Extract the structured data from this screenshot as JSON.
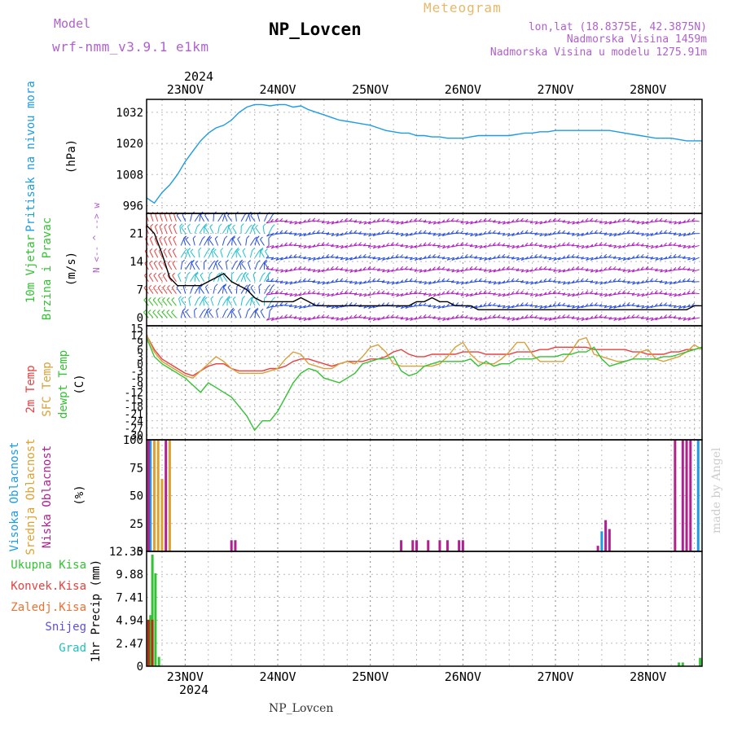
{
  "header": {
    "model_label": "Model",
    "model_name": "wrf-nmm_v3.9.1 e1km",
    "title": "NP_Lovcen",
    "meteogram_label": "Meteogram",
    "coords": "lon,lat (18.8375E, 42.3875N)",
    "altitude": "Nadmorska Visina 1459m",
    "model_altitude": "Nadmorska Visina u modelu 1275.91m",
    "footer": "NP_Lovcen",
    "credit": "made by Angel",
    "year_top": "2024",
    "year_bottom": "2024"
  },
  "colors": {
    "pressure": "#1e9be6",
    "t2m": "#e84040",
    "sfc": "#d9a03a",
    "dewpt": "#34c234",
    "high_cloud": "#1e9be6",
    "mid_cloud": "#e0a030",
    "low_cloud": "#b0208f",
    "precip_total": "#34c234",
    "precip_conv": "#b03010",
    "snow": "#5a4fe0",
    "hail": "#20c0c0",
    "wind_magenta": "#b020c0",
    "wind_blue": "#2a50e0",
    "wind_cyan": "#20c0d0",
    "wind_green": "#30c020",
    "wind_red": "#e84040"
  },
  "chart_data": {
    "type": "line",
    "x_axis": {
      "labels": [
        "23NOV",
        "24NOV",
        "25NOV",
        "26NOV",
        "27NOV",
        "28NOV"
      ],
      "range_hours": [
        0,
        144
      ]
    },
    "panels": [
      {
        "id": "pressure",
        "type": "line",
        "ylabel": "Pritisak na nivou mora",
        "unit": "(hPa)",
        "yticks": [
          "1032",
          "1020",
          "1008",
          "996"
        ],
        "ylim": [
          993,
          1037
        ],
        "series": [
          {
            "color": "pressure",
            "x": [
              0,
              2,
              4,
              6,
              8,
              10,
              12,
              14,
              16,
              18,
              20,
              22,
              24,
              26,
              28,
              30,
              32,
              34,
              36,
              38,
              40,
              42,
              44,
              46,
              48,
              50,
              52,
              54,
              56,
              58,
              60,
              62,
              64,
              66,
              68,
              70,
              72,
              74,
              76,
              78,
              80,
              82,
              84,
              86,
              88,
              90,
              92,
              94,
              96,
              98,
              100,
              102,
              104,
              106,
              108,
              110,
              112,
              114,
              116,
              118,
              120,
              122,
              124,
              126,
              128,
              130,
              132,
              134,
              136,
              138,
              140,
              142,
              144
            ],
            "y": [
              999,
              997,
              1001,
              1004,
              1008,
              1013,
              1017,
              1021,
              1024,
              1026,
              1027,
              1029,
              1032,
              1034,
              1035,
              1035,
              1034.5,
              1035,
              1035,
              1034,
              1034.5,
              1033,
              1032,
              1031,
              1030,
              1029,
              1028.5,
              1028,
              1027.5,
              1027,
              1026,
              1025,
              1024.5,
              1024,
              1024,
              1023,
              1023,
              1022.5,
              1022.5,
              1022,
              1022,
              1022,
              1022.5,
              1023,
              1023,
              1023,
              1023,
              1023,
              1023.5,
              1024,
              1024,
              1024.5,
              1024.5,
              1025,
              1025,
              1025,
              1025,
              1025,
              1025,
              1025,
              1025,
              1024.5,
              1024,
              1023.5,
              1023,
              1022.5,
              1022,
              1022,
              1022,
              1021.5,
              1021,
              1021,
              1021
            ]
          }
        ]
      },
      {
        "id": "wind",
        "type": "line",
        "ylabel": "10m Vjetar Brzina i Pravac",
        "unit": "(m/s)",
        "compass": "N <-- ^ --> w",
        "yticks": [
          "21",
          "14",
          "7",
          "0"
        ],
        "ylim": [
          -2,
          26
        ],
        "series": [
          {
            "name": "speed",
            "color": "#000000",
            "x": [
              0,
              2,
              4,
              6,
              8,
              10,
              12,
              14,
              16,
              18,
              20,
              22,
              24,
              26,
              28,
              30,
              32,
              34,
              36,
              38,
              40,
              42,
              44,
              46,
              48,
              50,
              52,
              54,
              56,
              58,
              60,
              62,
              64,
              66,
              68,
              70,
              72,
              74,
              76,
              78,
              80,
              82,
              84,
              86,
              88,
              90,
              92,
              94,
              96,
              98,
              100,
              102,
              104,
              106,
              108,
              110,
              112,
              114,
              116,
              118,
              120,
              122,
              124,
              126,
              128,
              130,
              132,
              134,
              136,
              138,
              140,
              142,
              144
            ],
            "y": [
              23,
              21,
              16,
              10,
              8,
              8,
              8,
              8,
              9,
              10,
              11,
              9,
              8,
              7,
              5,
              4,
              4,
              4,
              4,
              4,
              5,
              4,
              3,
              3,
              3,
              3,
              3,
              3,
              3,
              3,
              3,
              3,
              3,
              3,
              3,
              4,
              4,
              5,
              4,
              4,
              3,
              3,
              3,
              2,
              2,
              2,
              2,
              2,
              2,
              2,
              2,
              2,
              2,
              2,
              2,
              2,
              2,
              2,
              2,
              2,
              2,
              2,
              2,
              2,
              2,
              2,
              2,
              2,
              2,
              2,
              2,
              3,
              3
            ]
          }
        ]
      },
      {
        "id": "temperature",
        "type": "line",
        "ylabel": [
          "2m Temp",
          "SFC Temp",
          "dewpt Temp"
        ],
        "unit": "(C)",
        "yticks": [
          "15",
          "12",
          "9",
          "6",
          "3",
          "0",
          "-3",
          "-6",
          "-9",
          "-12",
          "-15",
          "-18",
          "-21",
          "-24",
          "-27",
          "-30"
        ],
        "ylim": [
          -32,
          16
        ],
        "series": [
          {
            "name": "2m Temp",
            "color": "t2m",
            "x": [
              0,
              2,
              4,
              6,
              8,
              10,
              12,
              14,
              16,
              18,
              20,
              22,
              24,
              26,
              28,
              30,
              32,
              34,
              36,
              38,
              40,
              42,
              44,
              46,
              48,
              50,
              52,
              54,
              56,
              58,
              60,
              62,
              64,
              66,
              68,
              70,
              72,
              74,
              76,
              78,
              80,
              82,
              84,
              86,
              88,
              90,
              92,
              94,
              96,
              98,
              100,
              102,
              104,
              106,
              108,
              110,
              112,
              114,
              116,
              118,
              120,
              122,
              124,
              126,
              128,
              130,
              132,
              134,
              136,
              138,
              140,
              142,
              144
            ],
            "y": [
              12,
              6,
              2,
              0,
              -2,
              -4,
              -5,
              -3,
              -1,
              0,
              0,
              -2,
              -3,
              -3,
              -3,
              -3,
              -2,
              -2,
              -1,
              1,
              2,
              2,
              1,
              0,
              -1,
              0,
              1,
              1,
              1,
              2,
              2,
              3,
              5,
              6,
              4,
              3,
              3,
              4,
              4,
              4,
              4,
              5,
              5,
              5,
              4,
              4,
              4,
              4,
              5,
              5,
              5,
              6,
              6,
              7,
              7,
              7,
              7,
              7,
              6,
              6,
              6,
              6,
              6,
              5,
              5,
              4,
              4,
              4,
              5,
              5,
              6,
              6,
              7
            ]
          },
          {
            "name": "SFC Temp",
            "color": "sfc",
            "x": [
              0,
              2,
              4,
              6,
              8,
              10,
              12,
              14,
              16,
              18,
              20,
              22,
              24,
              26,
              28,
              30,
              32,
              34,
              36,
              38,
              40,
              42,
              44,
              46,
              48,
              50,
              52,
              54,
              56,
              58,
              60,
              62,
              64,
              66,
              68,
              70,
              72,
              74,
              76,
              78,
              80,
              82,
              84,
              86,
              88,
              90,
              92,
              94,
              96,
              98,
              100,
              102,
              104,
              106,
              108,
              110,
              112,
              114,
              116,
              118,
              120,
              122,
              124,
              126,
              128,
              130,
              132,
              134,
              136,
              138,
              140,
              142,
              144
            ],
            "y": [
              12,
              5,
              1,
              -1,
              -3,
              -5,
              -6,
              -3,
              0,
              3,
              1,
              -2,
              -4,
              -4,
              -4,
              -4,
              -3,
              -2,
              2,
              5,
              4,
              0,
              -1,
              -2,
              -2,
              0,
              1,
              0,
              3,
              7,
              8,
              5,
              0,
              -1,
              -1,
              -1,
              -1,
              -1,
              0,
              3,
              7,
              9,
              4,
              1,
              0,
              0,
              2,
              5,
              9,
              9,
              4,
              1,
              1,
              1,
              1,
              5,
              10,
              11,
              4,
              3,
              2,
              1,
              1,
              2,
              5,
              6,
              2,
              1,
              2,
              3,
              5,
              8,
              6
            ]
          },
          {
            "name": "dewpt Temp",
            "color": "dewpt",
            "x": [
              0,
              2,
              4,
              6,
              8,
              10,
              12,
              14,
              16,
              18,
              20,
              22,
              24,
              26,
              28,
              30,
              32,
              34,
              36,
              38,
              40,
              42,
              44,
              46,
              48,
              50,
              52,
              54,
              56,
              58,
              60,
              62,
              64,
              66,
              68,
              70,
              72,
              74,
              76,
              78,
              80,
              82,
              84,
              86,
              88,
              90,
              92,
              94,
              96,
              98,
              100,
              102,
              104,
              106,
              108,
              110,
              112,
              114,
              116,
              118,
              120,
              122,
              124,
              126,
              128,
              130,
              132,
              134,
              136,
              138,
              140,
              142,
              144
            ],
            "y": [
              11,
              3,
              0,
              -2,
              -4,
              -6,
              -9,
              -12,
              -8,
              -10,
              -12,
              -14,
              -18,
              -22,
              -28,
              -24,
              -24,
              -20,
              -14,
              -8,
              -4,
              -2,
              -3,
              -6,
              -7,
              -8,
              -6,
              -4,
              0,
              1,
              2,
              2,
              3,
              -3,
              -5,
              -4,
              -1,
              0,
              1,
              1,
              1,
              1,
              2,
              -1,
              1,
              -1,
              0,
              0,
              2,
              2,
              2,
              3,
              3,
              3,
              4,
              4,
              5,
              5,
              7,
              2,
              -1,
              0,
              1,
              2,
              2,
              2,
              2,
              3,
              3,
              4,
              5,
              6,
              7
            ]
          }
        ]
      },
      {
        "id": "clouds",
        "type": "bar",
        "ylabel": [
          "Visoka Oblacnost",
          "Srednja Oblacnost",
          "Niska Oblacnost"
        ],
        "unit": "(%)",
        "yticks": [
          "100",
          "75",
          "50",
          "25",
          "0"
        ],
        "ylim": [
          0,
          100
        ],
        "series": [
          {
            "name": "Visoka Oblacnost",
            "color": "high_cloud",
            "x": [
              1,
              118,
              143
            ],
            "y": [
              100,
              18,
              100
            ]
          },
          {
            "name": "Srednja Oblacnost",
            "color": "mid_cloud",
            "x": [
              2,
              3,
              4,
              6
            ],
            "y": [
              100,
              100,
              65,
              100
            ]
          },
          {
            "name": "Niska Oblacnost",
            "color": "low_cloud",
            "x": [
              0.5,
              5,
              22,
              23,
              66,
              69,
              70,
              73,
              76,
              78,
              81,
              82,
              117,
              119,
              120,
              137,
              139,
              140,
              141
            ],
            "y": [
              100,
              100,
              10,
              10,
              10,
              10,
              10,
              10,
              10,
              10,
              10,
              10,
              5,
              28,
              20,
              100,
              100,
              100,
              100
            ]
          }
        ]
      },
      {
        "id": "precip",
        "type": "bar",
        "ylabel": "1hr Precip",
        "unit": "(mm)",
        "legend": [
          "Ukupna Kisa",
          "Konvek.Kisa",
          "Zaledj.Kisa",
          "Snijeg",
          "Grad"
        ],
        "yticks": [
          "12.35",
          "9.88",
          "7.41",
          "4.94",
          "2.47",
          "0"
        ],
        "ylim": [
          0,
          12.35
        ],
        "series": [
          {
            "name": "Ukupna Kisa",
            "color": "precip_total",
            "x": [
              0.5,
              1,
              1.5,
              2.3,
              3.2,
              138,
              139,
              143.5
            ],
            "y": [
              5,
              5.5,
              12,
              10,
              1,
              0.4,
              0.4,
              0.9
            ]
          },
          {
            "name": "Konvek.Kisa",
            "color": "precip_conv",
            "x": [
              0.5,
              1.5
            ],
            "y": [
              5,
              5
            ]
          }
        ]
      }
    ]
  }
}
